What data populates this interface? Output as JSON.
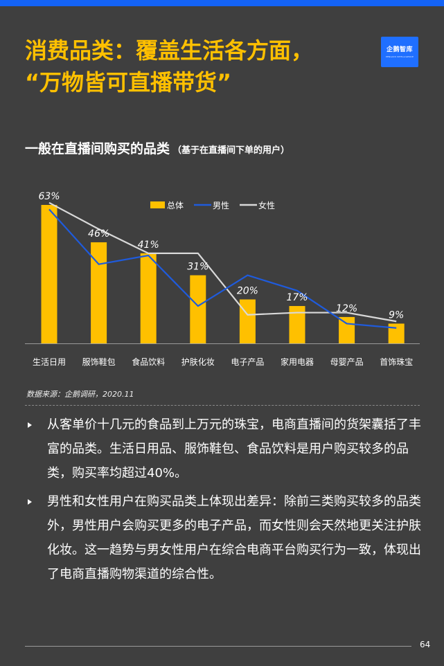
{
  "header": {
    "title_line1": "消费品类：覆盖生活各方面，",
    "title_line2": "“万物皆可直播带货”",
    "logo_text": "企鹅智库",
    "logo_subtext": "PENGUIN INTELLIGENCE"
  },
  "colors": {
    "accent": "#ffc000",
    "male": "#1f5bdc",
    "female": "#d9d9d9",
    "background": "#3f3f3f",
    "top_bar": "#1463f5"
  },
  "chart_data": {
    "type": "bar",
    "title": "一般在直播间购买的品类",
    "subtitle": "（基于在直播间下单的用户）",
    "categories": [
      "生活日用",
      "服饰鞋包",
      "食品饮料",
      "护肤化妆",
      "电子产品",
      "家用电器",
      "母婴产品",
      "首饰珠宝"
    ],
    "series": [
      {
        "name": "总体",
        "type": "bar",
        "values": [
          63,
          46,
          41,
          31,
          20,
          17,
          12,
          9
        ]
      },
      {
        "name": "男性",
        "type": "line",
        "values": [
          61,
          36,
          40,
          17,
          31,
          24,
          9,
          7
        ]
      },
      {
        "name": "女性",
        "type": "line",
        "values": [
          64,
          52,
          41,
          41,
          13,
          14,
          14,
          10
        ]
      }
    ],
    "data_labels": [
      "63%",
      "46%",
      "41%",
      "31%",
      "20%",
      "17%",
      "12%",
      "9%"
    ],
    "ylim": [
      0,
      70
    ],
    "grid": false,
    "legend_position": "top"
  },
  "source": "数据来源：企鹅调研，2020.11",
  "bullets": [
    "从客单价十几元的食品到上万元的珠宝，电商直播间的货架囊括了丰富的品类。生活日用品、服饰鞋包、食品饮料是用户购买较多的品类，购买率均超过40%。",
    "男性和女性用户在购买品类上体现出差异：除前三类购买较多的品类外，男性用户会购买更多的电子产品，而女性则会天然地更关注护肤化妆。这一趋势与男女性用户在综合电商平台购买行为一致，体现出了电商直播购物渠道的综合性。"
  ],
  "page_number": "64"
}
